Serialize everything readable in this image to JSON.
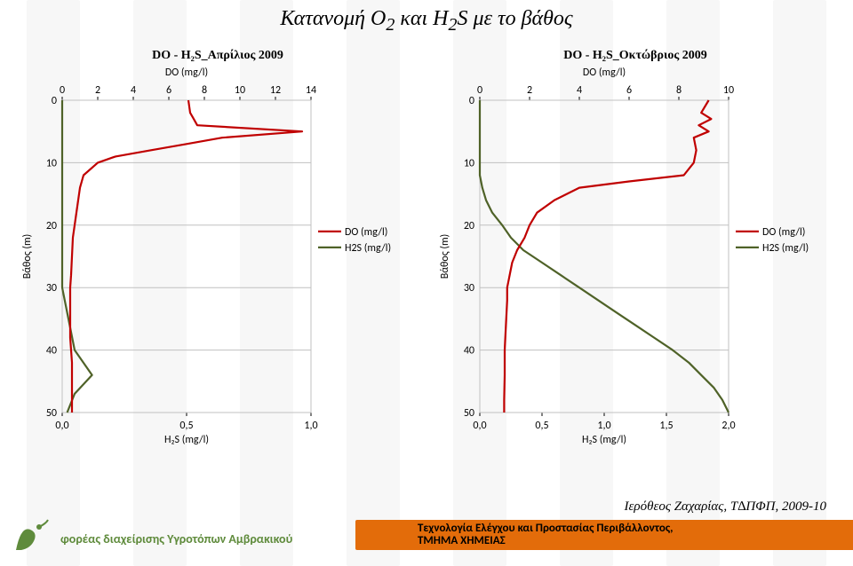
{
  "title_parts": {
    "pre": "Κατανομή Ο",
    "sub1": "2",
    "mid": " και H",
    "sub2": "2",
    "post": "S με το βάθος"
  },
  "title_fontsize": 24,
  "chart_title_fontsize": 14,
  "footer": {
    "credit": "Ιερόθεος Ζαχαρίας, Τ∆ΠΦΠ, 2009-10",
    "credit_fontsize": 15,
    "org": "φορέας διαχείρισης Υγροτόπων Αμβρακικού",
    "org_fontsize": 14,
    "orange_line1": "Τεχνολογία Ελέγχου και Προστασίας Περιβάλλοντος,",
    "orange_line2": "ΤΜΗΜΑ ΧΗΜΕΙΑΣ",
    "orange_fontsize": 13,
    "orange_bg": "#e36c0a",
    "orange_text": "#000000",
    "org_color": "#5f8b3c"
  },
  "legend_labels": {
    "do": "DO (mg/l)",
    "h2s": "H2S (mg/l)"
  },
  "series_colors": {
    "do": "#c00000",
    "h2s": "#4f6228"
  },
  "grid_color": "#c0c0c0",
  "axis_font_family": "Calibri,Arial,sans-serif",
  "chart1": {
    "title": "DO - H₂S_Απρίλιος 2009",
    "x_top": {
      "label": "DO (mg/l)",
      "min": 0,
      "max": 14,
      "ticks": [
        0,
        2,
        4,
        6,
        8,
        10,
        12,
        14
      ]
    },
    "x_bot": {
      "label": "H₂S (mg/l)",
      "min": 0.0,
      "max": 1.0,
      "ticks": [
        "0,0",
        "0,5",
        "1,0"
      ]
    },
    "y": {
      "label": "Βάθος (m)",
      "min": 0,
      "max": 50,
      "ticks": [
        0,
        10,
        20,
        30,
        40,
        50
      ]
    },
    "do_series": [
      [
        7.1,
        0
      ],
      [
        7.2,
        2
      ],
      [
        7.4,
        3
      ],
      [
        7.6,
        4
      ],
      [
        13.5,
        5
      ],
      [
        9.0,
        6
      ],
      [
        7.0,
        7
      ],
      [
        5.0,
        8
      ],
      [
        3.0,
        9
      ],
      [
        2.0,
        10
      ],
      [
        1.2,
        12
      ],
      [
        1.0,
        14
      ],
      [
        0.9,
        16
      ],
      [
        0.8,
        18
      ],
      [
        0.7,
        20
      ],
      [
        0.6,
        22
      ],
      [
        0.55,
        25
      ],
      [
        0.5,
        28
      ],
      [
        0.45,
        30
      ],
      [
        0.45,
        34
      ],
      [
        0.45,
        38
      ],
      [
        0.55,
        42
      ],
      [
        0.55,
        46
      ],
      [
        0.55,
        50
      ]
    ],
    "h2s_series": [
      [
        0.0,
        0
      ],
      [
        0.0,
        5
      ],
      [
        0.0,
        10
      ],
      [
        0.0,
        15
      ],
      [
        0.0,
        20
      ],
      [
        0.0,
        25
      ],
      [
        0.0,
        30
      ],
      [
        0.01,
        32
      ],
      [
        0.03,
        36
      ],
      [
        0.05,
        40
      ],
      [
        0.12,
        44
      ],
      [
        0.05,
        47
      ],
      [
        0.02,
        50
      ]
    ]
  },
  "chart2": {
    "title": "DO - H₂S_Οκτώβριος 2009",
    "x_top": {
      "label": "DO (mg/l)",
      "min": 0,
      "max": 10,
      "ticks": [
        0,
        2,
        4,
        6,
        8,
        10
      ]
    },
    "x_bot": {
      "label": "H₂S (mg/l)",
      "min": 0.0,
      "max": 2.0,
      "ticks": [
        "0,0",
        "0,5",
        "1,0",
        "1,5",
        "2,0"
      ]
    },
    "y": {
      "label": "Βάθος (m)",
      "min": 0,
      "max": 50,
      "ticks": [
        0,
        10,
        20,
        30,
        40,
        50
      ]
    },
    "do_series": [
      [
        9.2,
        0
      ],
      [
        8.9,
        2
      ],
      [
        9.3,
        3
      ],
      [
        8.8,
        4
      ],
      [
        9.2,
        5
      ],
      [
        8.6,
        6
      ],
      [
        8.7,
        8
      ],
      [
        8.6,
        10
      ],
      [
        8.4,
        11
      ],
      [
        8.2,
        12
      ],
      [
        6.0,
        13
      ],
      [
        4.0,
        14
      ],
      [
        3.0,
        16
      ],
      [
        2.3,
        18
      ],
      [
        2.0,
        20
      ],
      [
        1.8,
        22
      ],
      [
        1.5,
        24
      ],
      [
        1.3,
        26
      ],
      [
        1.2,
        28
      ],
      [
        1.1,
        30
      ],
      [
        1.1,
        32
      ],
      [
        1.05,
        36
      ],
      [
        1.0,
        40
      ],
      [
        1.0,
        44
      ],
      [
        0.98,
        48
      ],
      [
        0.98,
        50
      ]
    ],
    "h2s_series": [
      [
        0.0,
        0
      ],
      [
        0.0,
        8
      ],
      [
        0.0,
        12
      ],
      [
        0.02,
        14
      ],
      [
        0.05,
        16
      ],
      [
        0.1,
        18
      ],
      [
        0.18,
        20
      ],
      [
        0.25,
        22
      ],
      [
        0.35,
        24
      ],
      [
        0.5,
        26
      ],
      [
        0.65,
        28
      ],
      [
        0.8,
        30
      ],
      [
        0.95,
        32
      ],
      [
        1.1,
        34
      ],
      [
        1.25,
        36
      ],
      [
        1.4,
        38
      ],
      [
        1.55,
        40
      ],
      [
        1.68,
        42
      ],
      [
        1.78,
        44
      ],
      [
        1.88,
        46
      ],
      [
        1.95,
        48
      ],
      [
        2.0,
        50
      ]
    ]
  },
  "line_width": 2.2,
  "axis_tick_fontsize": 12,
  "axis_label_fontsize": 12
}
